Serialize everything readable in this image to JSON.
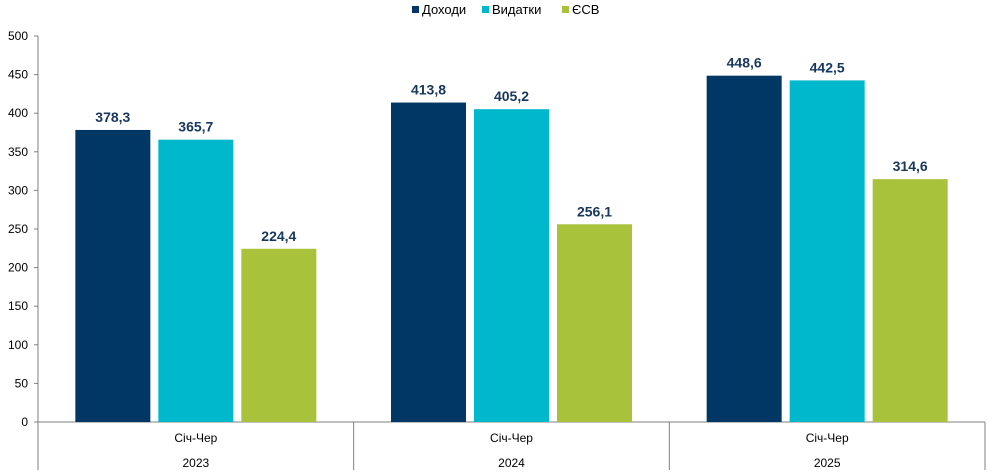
{
  "chart_data": {
    "type": "bar",
    "categories": [
      {
        "period": "Січ-Чер",
        "year": "2023"
      },
      {
        "period": "Січ-Чер",
        "year": "2024"
      },
      {
        "period": "Січ-Чер",
        "year": "2025"
      }
    ],
    "series": [
      {
        "name": "Доходи",
        "color": "#003764",
        "values": [
          378.3,
          413.8,
          448.6
        ],
        "labels": [
          "378,3",
          "413,8",
          "448,6"
        ]
      },
      {
        "name": "Видатки",
        "color": "#00b8cc",
        "values": [
          365.7,
          405.2,
          442.5
        ],
        "labels": [
          "365,7",
          "405,2",
          "442,5"
        ]
      },
      {
        "name": "ЄСВ",
        "color": "#a8c23b",
        "values": [
          224.4,
          256.1,
          314.6
        ],
        "labels": [
          "224,4",
          "256,1",
          "314,6"
        ]
      }
    ],
    "ylim": [
      0,
      500
    ],
    "yticks": [
      0,
      50,
      100,
      150,
      200,
      250,
      300,
      350,
      400,
      450,
      500
    ],
    "grid": false,
    "legend_position": "top-center",
    "label_color": "#17375e"
  }
}
